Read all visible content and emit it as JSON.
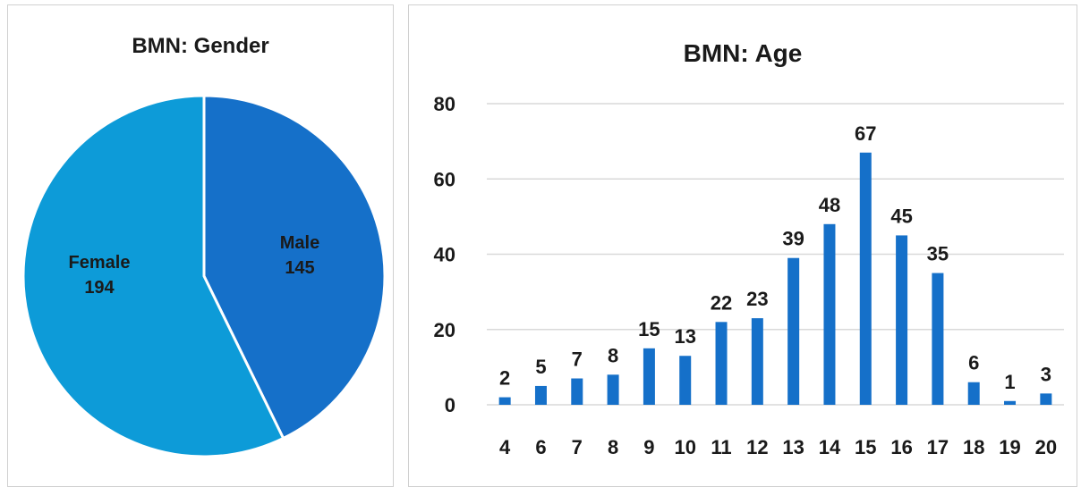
{
  "chart_data": [
    {
      "type": "pie",
      "title": "BMN: Gender",
      "slices": [
        {
          "label": "Male",
          "value": 145,
          "color": "#1570c9"
        },
        {
          "label": "Female",
          "value": 194,
          "color": "#0d9bd8"
        }
      ],
      "legend": "none"
    },
    {
      "type": "bar",
      "title": "BMN: Age",
      "categories": [
        "4",
        "6",
        "7",
        "8",
        "9",
        "10",
        "11",
        "12",
        "13",
        "14",
        "15",
        "16",
        "17",
        "18",
        "19",
        "20"
      ],
      "values": [
        2,
        5,
        7,
        8,
        15,
        13,
        22,
        23,
        39,
        48,
        67,
        45,
        35,
        6,
        1,
        3
      ],
      "ylim": [
        0,
        80
      ],
      "yticks": [
        0,
        20,
        40,
        60,
        80
      ],
      "grid": true,
      "bar_color": "#1570c9",
      "xlabel": "",
      "ylabel": ""
    }
  ]
}
